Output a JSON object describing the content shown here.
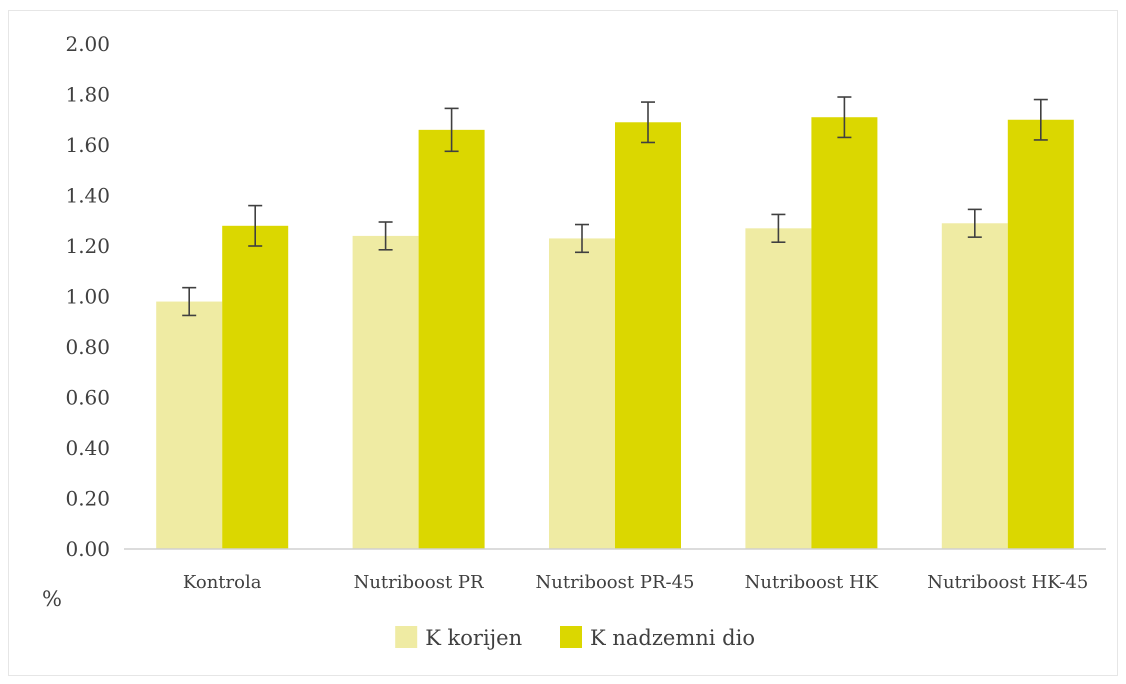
{
  "chart_data": {
    "type": "bar",
    "title": "",
    "xlabel": "",
    "ylabel": "%",
    "ylim": [
      0,
      2.0
    ],
    "ytick_step": 0.2,
    "ytick_decimals": 2,
    "grid": false,
    "legend_position": "bottom",
    "categories": [
      "Kontrola",
      "Nutriboost PR",
      "Nutriboost PR-45",
      "Nutriboost HK",
      "Nutriboost HK-45"
    ],
    "series": [
      {
        "name": "K korijen",
        "color": "#efeba3",
        "values": [
          0.98,
          1.24,
          1.23,
          1.27,
          1.29
        ],
        "errors": [
          0.055,
          0.055,
          0.055,
          0.055,
          0.055
        ]
      },
      {
        "name": "K nadzemni dio",
        "color": "#dbd700",
        "values": [
          1.28,
          1.66,
          1.69,
          1.71,
          1.7
        ],
        "errors": [
          0.08,
          0.085,
          0.08,
          0.08,
          0.08
        ]
      }
    ]
  }
}
